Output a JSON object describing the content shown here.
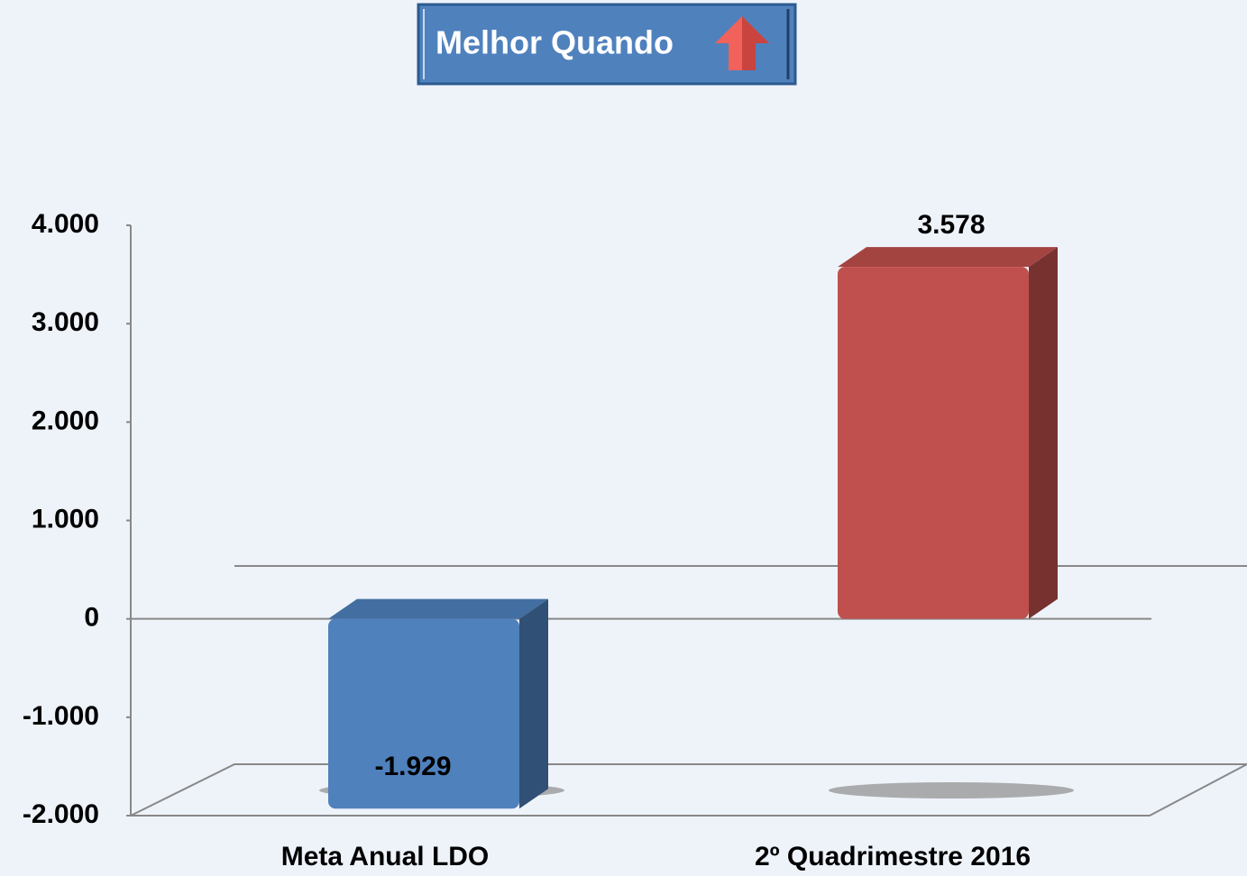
{
  "chart_data": {
    "type": "bar",
    "badge": "Melhor Quando",
    "categories": [
      "Meta Anual LDO",
      "2º Quadrimestre 2016"
    ],
    "values": [
      -1929,
      3578
    ],
    "value_labels": [
      "-1.929",
      "3.578"
    ],
    "colors": [
      "#4f81bd",
      "#c0504d"
    ],
    "ylim": [
      -2000,
      4000
    ],
    "yticks": [
      {
        "value": -2000,
        "label": "-2.000"
      },
      {
        "value": -1000,
        "label": "-1.000"
      },
      0,
      {
        "value": 1000,
        "label": "1.000"
      },
      {
        "value": 2000,
        "label": "2.000"
      },
      {
        "value": 3000,
        "label": "3.000"
      },
      {
        "value": 4000,
        "label": "4.000"
      }
    ]
  }
}
